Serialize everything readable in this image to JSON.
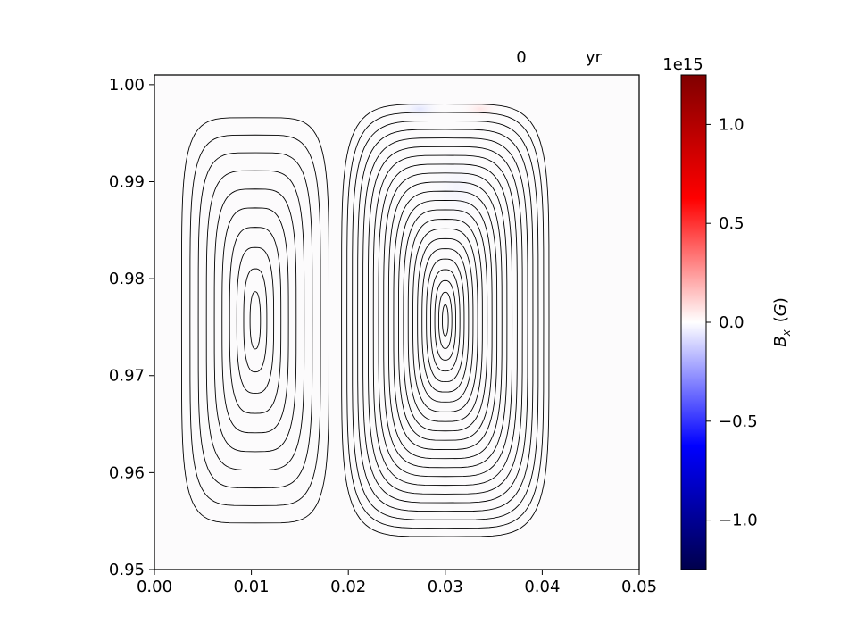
{
  "chart_data": {
    "type": "contour",
    "title_time_value": "0",
    "title_time_unit": "yr",
    "x": {
      "range": [
        0.0,
        0.05
      ],
      "tick_labels": [
        "0.00",
        "0.01",
        "0.02",
        "0.03",
        "0.04",
        "0.05"
      ],
      "ticks": [
        0.0,
        0.01,
        0.02,
        0.03,
        0.04,
        0.05
      ]
    },
    "y": {
      "range": [
        0.95,
        1.001
      ],
      "tick_labels": [
        "0.95",
        "0.96",
        "0.97",
        "0.98",
        "0.99",
        "1.00"
      ],
      "ticks": [
        0.95,
        0.96,
        0.97,
        0.98,
        0.99,
        1.0
      ]
    },
    "colormap": "seismic",
    "colorbar": {
      "range": [
        -1250000000000000.0,
        1250000000000000.0
      ],
      "exponent_label": "1e15",
      "ticks": [
        -1.0,
        -0.5,
        0.0,
        0.5,
        1.0
      ],
      "tick_labels": [
        "−1.0",
        "−0.5",
        "0.0",
        "0.5",
        "1.0"
      ],
      "label": "B_x (G)"
    },
    "contour_cells": [
      {
        "center_x": 0.0104,
        "center_y": 0.9757,
        "levels": 10,
        "outer_half_width_x": 0.0076,
        "outer_half_height_y": 0.0209
      },
      {
        "center_x": 0.03,
        "center_y": 0.9757,
        "levels": 22,
        "outer_half_width_x": 0.0107,
        "outer_half_height_y": 0.0223
      }
    ],
    "grid": false
  }
}
